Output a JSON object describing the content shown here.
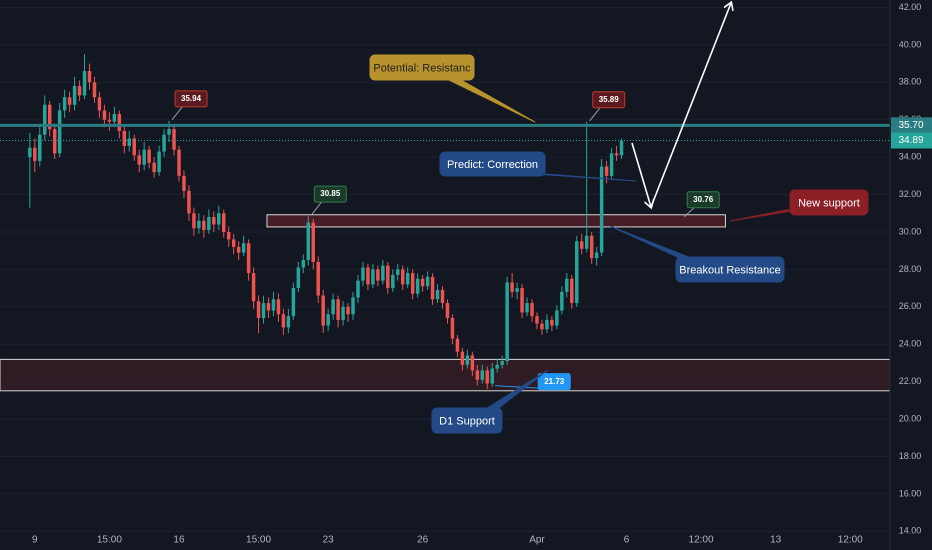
{
  "chart_data": {
    "type": "candlestick",
    "up_color": "#26a69a",
    "down_color": "#ef5350",
    "ohlc": [
      [
        34.0,
        35.3,
        31.3,
        34.5
      ],
      [
        34.5,
        35.0,
        33.2,
        33.8
      ],
      [
        33.8,
        35.6,
        33.5,
        35.2
      ],
      [
        35.2,
        37.3,
        34.9,
        36.8
      ],
      [
        36.8,
        37.0,
        35.1,
        35.5
      ],
      [
        35.5,
        35.8,
        33.9,
        34.2
      ],
      [
        34.2,
        36.9,
        34.0,
        36.5
      ],
      [
        36.5,
        37.6,
        36.1,
        37.2
      ],
      [
        37.2,
        37.5,
        36.4,
        36.8
      ],
      [
        36.8,
        38.3,
        36.5,
        37.8
      ],
      [
        37.8,
        38.1,
        37.0,
        37.3
      ],
      [
        37.3,
        39.5,
        37.1,
        38.6
      ],
      [
        38.6,
        39.0,
        37.6,
        38.0
      ],
      [
        38.0,
        38.3,
        36.9,
        37.2
      ],
      [
        37.2,
        37.5,
        36.1,
        36.5
      ],
      [
        36.5,
        36.8,
        35.6,
        36.0
      ],
      [
        36.0,
        36.4,
        35.4,
        35.9
      ],
      [
        35.9,
        36.7,
        35.6,
        36.3
      ],
      [
        36.3,
        36.5,
        35.0,
        35.4
      ],
      [
        35.4,
        35.7,
        34.2,
        34.6
      ],
      [
        34.6,
        35.4,
        34.3,
        35.0
      ],
      [
        35.0,
        35.2,
        33.8,
        34.1
      ],
      [
        34.1,
        34.4,
        33.2,
        33.6
      ],
      [
        33.6,
        34.8,
        33.3,
        34.4
      ],
      [
        34.4,
        34.6,
        33.4,
        33.7
      ],
      [
        33.7,
        34.0,
        32.9,
        33.2
      ],
      [
        33.2,
        34.6,
        33.0,
        34.3
      ],
      [
        34.3,
        35.5,
        34.0,
        35.2
      ],
      [
        35.2,
        35.94,
        34.8,
        35.5
      ],
      [
        35.5,
        35.7,
        34.1,
        34.4
      ],
      [
        34.4,
        34.6,
        32.7,
        33.0
      ],
      [
        33.0,
        33.3,
        31.8,
        32.2
      ],
      [
        32.2,
        32.5,
        30.6,
        31.0
      ],
      [
        31.0,
        31.3,
        29.8,
        30.2
      ],
      [
        30.2,
        31.0,
        29.9,
        30.6
      ],
      [
        30.6,
        30.9,
        29.7,
        30.1
      ],
      [
        30.1,
        31.2,
        29.9,
        30.8
      ],
      [
        30.8,
        31.1,
        30.0,
        30.4
      ],
      [
        30.4,
        31.4,
        30.1,
        31.0
      ],
      [
        31.0,
        31.2,
        29.7,
        30.0
      ],
      [
        30.0,
        30.3,
        29.2,
        29.6
      ],
      [
        29.6,
        29.9,
        28.8,
        29.2
      ],
      [
        29.2,
        29.5,
        28.5,
        28.9
      ],
      [
        28.9,
        29.8,
        28.7,
        29.4
      ],
      [
        29.4,
        29.6,
        27.4,
        27.8
      ],
      [
        27.8,
        28.1,
        25.9,
        26.3
      ],
      [
        26.3,
        26.6,
        24.6,
        25.4
      ],
      [
        25.4,
        26.6,
        25.1,
        26.2
      ],
      [
        26.2,
        26.5,
        25.4,
        25.8
      ],
      [
        25.8,
        26.8,
        25.5,
        26.4
      ],
      [
        26.4,
        26.7,
        25.2,
        25.6
      ],
      [
        25.6,
        25.9,
        24.5,
        24.9
      ],
      [
        24.9,
        25.9,
        24.6,
        25.5
      ],
      [
        25.5,
        27.3,
        25.3,
        27.0
      ],
      [
        27.0,
        28.4,
        26.8,
        28.1
      ],
      [
        28.1,
        28.8,
        27.8,
        28.5
      ],
      [
        28.5,
        30.85,
        28.2,
        30.5
      ],
      [
        30.5,
        30.7,
        28.0,
        28.4
      ],
      [
        28.4,
        28.7,
        26.2,
        26.6
      ],
      [
        26.6,
        26.9,
        24.6,
        25.0
      ],
      [
        25.0,
        25.9,
        24.7,
        25.6
      ],
      [
        25.6,
        26.7,
        25.3,
        26.4
      ],
      [
        26.4,
        26.6,
        24.9,
        25.3
      ],
      [
        25.3,
        26.3,
        25.0,
        26.0
      ],
      [
        26.0,
        26.2,
        25.2,
        25.6
      ],
      [
        25.6,
        26.8,
        25.3,
        26.5
      ],
      [
        26.5,
        27.7,
        26.2,
        27.4
      ],
      [
        27.4,
        28.4,
        27.1,
        28.1
      ],
      [
        28.1,
        28.3,
        26.9,
        27.2
      ],
      [
        27.2,
        28.3,
        27.0,
        28.0
      ],
      [
        28.0,
        28.2,
        27.1,
        27.4
      ],
      [
        27.4,
        28.5,
        27.2,
        28.2
      ],
      [
        28.2,
        28.4,
        26.7,
        27.0
      ],
      [
        27.0,
        28.0,
        26.8,
        27.7
      ],
      [
        27.7,
        28.3,
        27.4,
        28.0
      ],
      [
        28.0,
        28.2,
        26.9,
        27.2
      ],
      [
        27.2,
        28.1,
        27.0,
        27.8
      ],
      [
        27.8,
        28.0,
        26.4,
        26.7
      ],
      [
        26.7,
        27.8,
        26.5,
        27.5
      ],
      [
        27.5,
        27.7,
        26.8,
        27.1
      ],
      [
        27.1,
        27.9,
        26.9,
        27.6
      ],
      [
        27.6,
        27.8,
        26.1,
        26.4
      ],
      [
        26.4,
        27.2,
        26.2,
        26.9
      ],
      [
        26.9,
        27.1,
        25.9,
        26.2
      ],
      [
        26.2,
        26.4,
        25.1,
        25.4
      ],
      [
        25.4,
        25.6,
        24.0,
        24.3
      ],
      [
        24.3,
        24.5,
        23.3,
        23.6
      ],
      [
        23.6,
        23.8,
        22.6,
        22.9
      ],
      [
        22.9,
        23.7,
        22.7,
        23.4
      ],
      [
        23.4,
        23.6,
        22.3,
        22.6
      ],
      [
        22.6,
        22.9,
        21.8,
        22.1
      ],
      [
        22.1,
        22.9,
        21.9,
        22.6
      ],
      [
        22.6,
        22.8,
        21.6,
        21.9
      ],
      [
        21.9,
        23.0,
        21.73,
        22.7
      ],
      [
        22.7,
        23.2,
        22.5,
        22.9
      ],
      [
        22.9,
        23.4,
        22.7,
        23.1
      ],
      [
        23.1,
        27.6,
        22.9,
        27.3
      ],
      [
        27.3,
        27.8,
        26.5,
        26.8
      ],
      [
        26.8,
        27.3,
        26.4,
        27.0
      ],
      [
        27.0,
        27.2,
        25.4,
        25.7
      ],
      [
        25.7,
        26.5,
        25.5,
        26.2
      ],
      [
        26.2,
        26.4,
        25.2,
        25.5
      ],
      [
        25.5,
        25.7,
        24.8,
        25.1
      ],
      [
        25.1,
        25.3,
        24.5,
        24.8
      ],
      [
        24.8,
        25.6,
        24.6,
        25.3
      ],
      [
        25.3,
        25.5,
        24.7,
        25.0
      ],
      [
        25.0,
        26.1,
        24.8,
        25.8
      ],
      [
        25.8,
        27.1,
        25.6,
        26.8
      ],
      [
        26.8,
        27.8,
        26.5,
        27.5
      ],
      [
        27.5,
        27.7,
        25.9,
        26.2
      ],
      [
        26.2,
        29.8,
        26.0,
        29.5
      ],
      [
        29.5,
        29.9,
        28.8,
        29.1
      ],
      [
        29.1,
        35.89,
        28.9,
        29.8
      ],
      [
        29.8,
        30.0,
        28.3,
        28.6
      ],
      [
        28.6,
        29.2,
        28.2,
        28.9
      ],
      [
        28.9,
        33.9,
        28.7,
        33.5
      ],
      [
        33.5,
        33.8,
        32.6,
        33.0
      ],
      [
        33.0,
        34.5,
        32.8,
        34.2
      ],
      [
        34.2,
        34.6,
        33.8,
        34.1
      ],
      [
        34.1,
        35.0,
        33.9,
        34.89
      ]
    ],
    "xlim": [
      -6,
      173
    ],
    "xticks": [
      {
        "value": 1,
        "label": "9"
      },
      {
        "value": 16,
        "label": "15:00"
      },
      {
        "value": 30,
        "label": "16"
      },
      {
        "value": 46,
        "label": "15:00"
      },
      {
        "value": 60,
        "label": "23"
      },
      {
        "value": 79,
        "label": "26"
      },
      {
        "value": 102,
        "label": "Apr"
      },
      {
        "value": 120,
        "label": "6"
      },
      {
        "value": 135,
        "label": "12:00"
      },
      {
        "value": 150,
        "label": "13"
      },
      {
        "value": 165,
        "label": "12:00"
      }
    ],
    "ylim": [
      13.0,
      42.4
    ],
    "yticks": [
      {
        "value": 14,
        "label": "14.00"
      },
      {
        "value": 16,
        "label": "16.00"
      },
      {
        "value": 18,
        "label": "18.00"
      },
      {
        "value": 20,
        "label": "20.00"
      },
      {
        "value": 22,
        "label": "22.00"
      },
      {
        "value": 24,
        "label": "24.00"
      },
      {
        "value": 26,
        "label": "26.00"
      },
      {
        "value": 28,
        "label": "28.00"
      },
      {
        "value": 30,
        "label": "30.00"
      },
      {
        "value": 32,
        "label": "32.00"
      },
      {
        "value": 34,
        "label": "34.00"
      },
      {
        "value": 36,
        "label": "36.00"
      },
      {
        "value": 38,
        "label": "38.00"
      },
      {
        "value": 40,
        "label": "40.00"
      },
      {
        "value": 42,
        "label": "42.00"
      }
    ],
    "grid": true,
    "price_lines": [
      {
        "value": 35.7,
        "label": "35.70",
        "color": "#2b7d84"
      }
    ],
    "last_price_color": "#26a69a",
    "zones": [
      {
        "ylim": [
          30.27,
          30.92
        ],
        "xlim": [
          47.7,
          139.9
        ],
        "color": "#5a1f2a"
      },
      {
        "ylim": [
          21.51,
          23.19
        ],
        "color": "#3a1e26"
      }
    ],
    "price_callouts": [
      {
        "x": 28,
        "value": 35.94,
        "color": "#5c1a20"
      },
      {
        "x": 56,
        "value": 30.85,
        "color": "#1b3b2a"
      },
      {
        "x": 131,
        "value": 30.76,
        "color": "#1b3b2a"
      },
      {
        "x": 112,
        "value": 35.89,
        "color": "#5c1a20"
      },
      {
        "x": 93,
        "value": 21.73,
        "color": "#2196f3"
      }
    ],
    "annotations": [
      {
        "text": "Potential: Resistanc",
        "color": "#b8922c"
      },
      {
        "text": "Predict: Correction",
        "color": "#234a86"
      },
      {
        "text": "New support",
        "color": "#8c1f26"
      },
      {
        "text": "Breakout Resistance",
        "color": "#234a86"
      },
      {
        "text": "D1 Support",
        "color": "#234a86"
      }
    ]
  }
}
